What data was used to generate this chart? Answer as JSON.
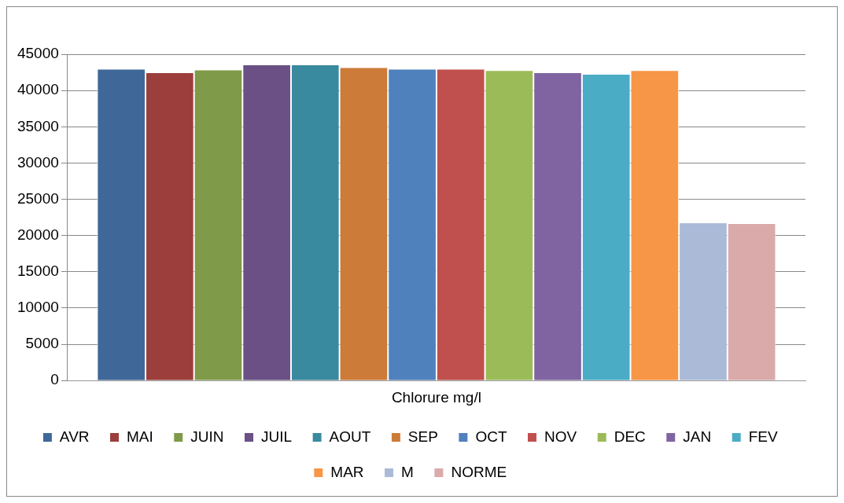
{
  "chart_data": {
    "type": "bar",
    "categories": [
      "Chlorure mg/l"
    ],
    "series": [
      {
        "name": "AVR",
        "color": "#3f6899",
        "values": [
          43000
        ]
      },
      {
        "name": "MAI",
        "color": "#9c3e3b",
        "values": [
          42500
        ]
      },
      {
        "name": "JUIN",
        "color": "#7f9a48",
        "values": [
          42900
        ]
      },
      {
        "name": "JUIL",
        "color": "#6a5085",
        "values": [
          43600
        ]
      },
      {
        "name": "AOUT",
        "color": "#3a8a9f",
        "values": [
          43600
        ]
      },
      {
        "name": "SEP",
        "color": "#cc7b38",
        "values": [
          43200
        ]
      },
      {
        "name": "OCT",
        "color": "#4f81bd",
        "values": [
          43000
        ]
      },
      {
        "name": "NOV",
        "color": "#c0504d",
        "values": [
          43000
        ]
      },
      {
        "name": "DEC",
        "color": "#9bbb59",
        "values": [
          42800
        ]
      },
      {
        "name": "JAN",
        "color": "#8064a2",
        "values": [
          42500
        ]
      },
      {
        "name": "FEV",
        "color": "#4bacc6",
        "values": [
          42300
        ]
      },
      {
        "name": "MAR",
        "color": "#f79646",
        "values": [
          42800
        ]
      },
      {
        "name": "M",
        "color": "#aabad7",
        "values": [
          21800
        ]
      },
      {
        "name": "NORME",
        "color": "#d9aaa9",
        "values": [
          21700
        ]
      }
    ],
    "ylim": [
      0,
      45000
    ],
    "yticks": [
      0,
      5000,
      10000,
      15000,
      20000,
      25000,
      30000,
      35000,
      40000,
      45000
    ],
    "grid": "y",
    "legend": "bottom"
  }
}
